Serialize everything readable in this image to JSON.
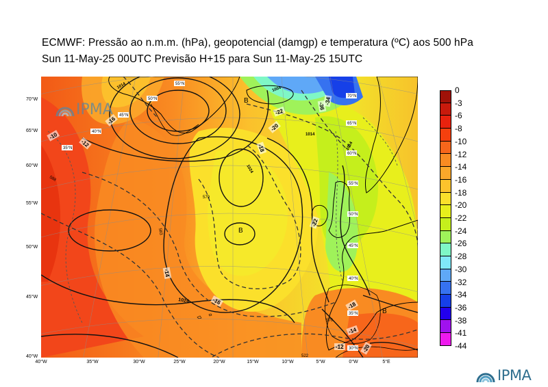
{
  "title": {
    "line1": "ECMWF:  Pressão ao n.m.m. (hPa), geopotencial (damgp) e temperatura (ºC) aos 500 hPa",
    "line2": "Sun 11-May-25 00UTC Previsão H+15 para Sun 11-May-25 15UTC"
  },
  "logo": {
    "text": "IPMA",
    "icon": "ipma-wave-icon"
  },
  "axes": {
    "lat_labels": [
      "70°N",
      "65°N",
      "60°N",
      "55°N",
      "50°N",
      "45°N",
      "40°N"
    ],
    "lon_labels": [
      "40°W",
      "35°W",
      "30°W",
      "25°W",
      "20°W",
      "15°W",
      "10°W",
      "5°W",
      "0°W",
      "5°E"
    ],
    "lat_ticks": [
      "70°W",
      "65°W",
      "60°W",
      "55°W",
      "50°W",
      "45°W",
      "40°W"
    ]
  },
  "graticule_labels": {
    "lat": [
      "55°N",
      "50°N",
      "45°N",
      "40°N",
      "35°N",
      "30°N",
      "70°N",
      "65°N",
      "60°N",
      "55°N",
      "50°N",
      "45°N",
      "40°N",
      "35°N",
      "30°N"
    ]
  },
  "contour_labels": {
    "pressure": [
      "1014",
      "1014",
      "1024",
      "1024",
      "1004",
      "1014"
    ],
    "temperature": [
      "-10",
      "-12",
      "-14",
      "-16",
      "-18",
      "-18",
      "-20",
      "-22",
      "-22",
      "-12",
      "-14",
      "-10",
      "-16",
      "-18",
      "-20",
      "-36",
      "-34",
      "-20",
      "-12"
    ],
    "geopotential": [
      "570",
      "579",
      "560",
      "549",
      "583",
      "558",
      "540",
      "531",
      "570",
      "588",
      "522"
    ],
    "pressure_centers": [
      "B",
      "B",
      "B"
    ]
  },
  "colorbar": {
    "labels": [
      "0",
      "-3",
      "-6",
      "-8",
      "-10",
      "-12",
      "-14",
      "-16",
      "-18",
      "-20",
      "-22",
      "-24",
      "-26",
      "-28",
      "-30",
      "-32",
      "-34",
      "-36",
      "-38",
      "-41",
      "-44"
    ],
    "colors": [
      "#6b0f0a",
      "#a01208",
      "#c81a0c",
      "#e8220e",
      "#f4400e",
      "#f7661b",
      "#f98b22",
      "#fba72a",
      "#fcc32c",
      "#fbe02b",
      "#e8ef1c",
      "#c5ef1c",
      "#9ff25a",
      "#7ff7c6",
      "#80e8f8",
      "#5fa8f7",
      "#3672f0",
      "#1640e8",
      "#2200ee",
      "#a012ee",
      "#ee1aee"
    ]
  }
}
